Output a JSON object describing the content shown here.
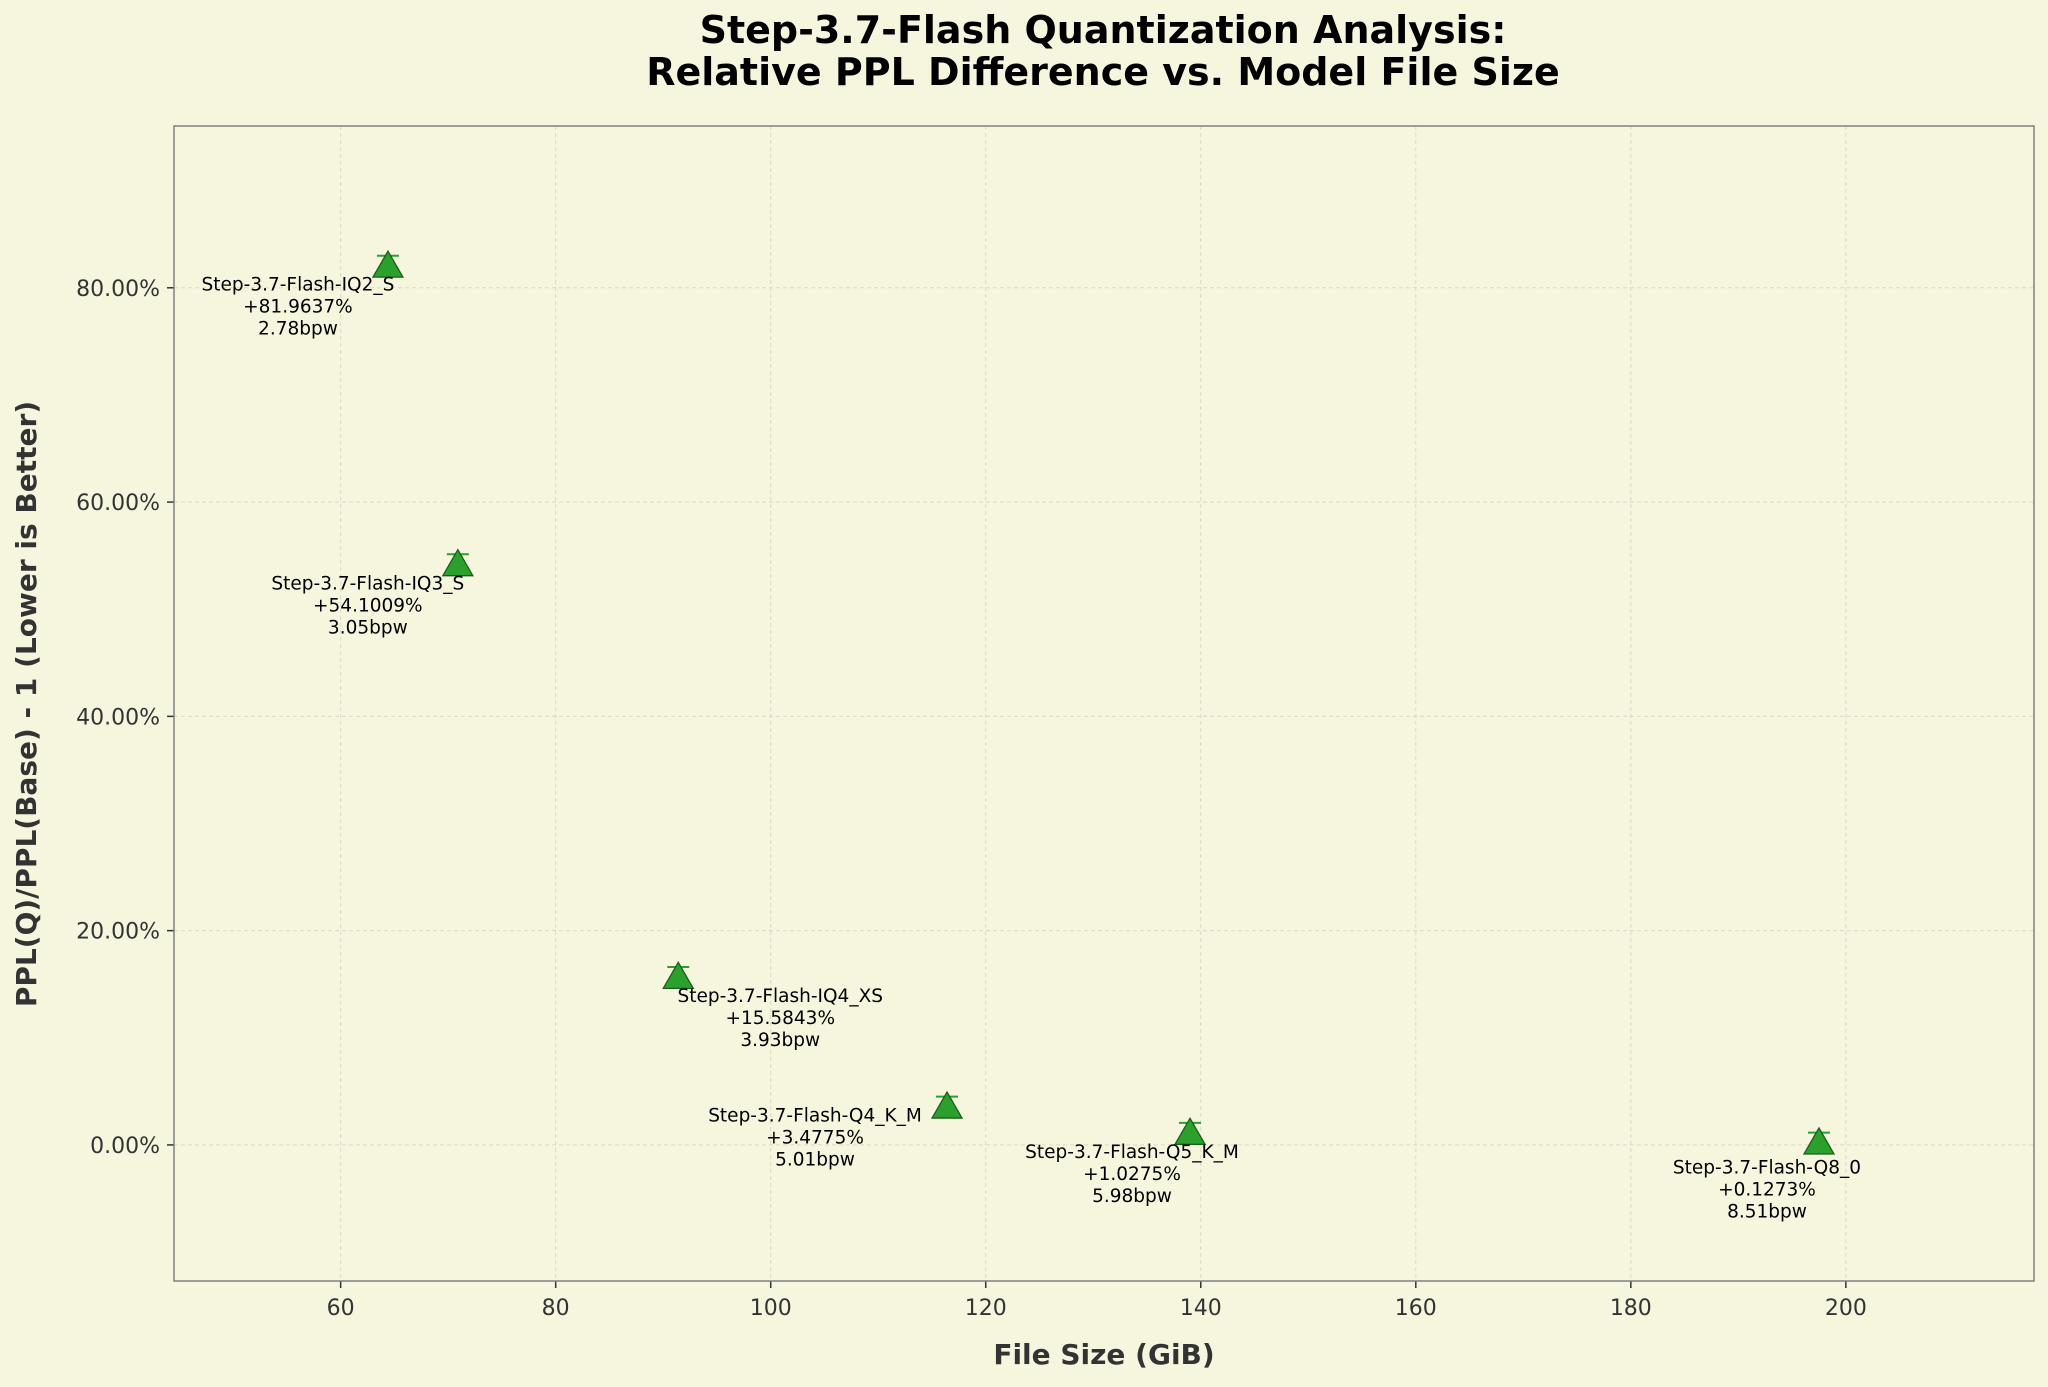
{
  "chart_data": {
    "type": "scatter",
    "title": [
      "Step-3.7-Flash Quantization Analysis:",
      "Relative PPL Difference vs. Model File Size"
    ],
    "xlabel": "File Size (GiB)",
    "ylabel": "PPL(Q)/PPL(Base) - 1 (Lower is Better)",
    "xlim": [
      44.5,
      217.5
    ],
    "ylim": [
      -12.7,
      95.1
    ],
    "xticks": [
      60,
      80,
      100,
      120,
      140,
      160,
      180,
      200
    ],
    "xtick_labels": [
      "60",
      "80",
      "100",
      "120",
      "140",
      "160",
      "180",
      "200"
    ],
    "yticks": [
      0,
      20,
      40,
      60,
      80
    ],
    "ytick_labels": [
      "0.00%",
      "20.00%",
      "40.00%",
      "60.00%",
      "80.00%"
    ],
    "grid": true,
    "marker": "triangle",
    "colors": {
      "background": "#f6f6de",
      "marker_fill": "#2ca02c",
      "marker_edge": "#1a5e1a",
      "grid": "#d9d9c6",
      "spine": "#808080"
    },
    "points": [
      {
        "x": 64.4,
        "y": 81.9637,
        "name": "Step-3.7-Flash-IQ2_S",
        "value_label": "+81.9637%",
        "bpw_label": "2.78bpw"
      },
      {
        "x": 70.9,
        "y": 54.1009,
        "name": "Step-3.7-Flash-IQ3_S",
        "value_label": "+54.1009%",
        "bpw_label": "3.05bpw"
      },
      {
        "x": 91.4,
        "y": 15.5843,
        "name": "Step-3.7-Flash-IQ4_XS",
        "value_label": "+15.5843%",
        "bpw_label": "3.93bpw"
      },
      {
        "x": 116.4,
        "y": 3.4775,
        "name": "Step-3.7-Flash-Q4_K_M",
        "value_label": "+3.4775%",
        "bpw_label": "5.01bpw"
      },
      {
        "x": 139.0,
        "y": 1.0275,
        "name": "Step-3.7-Flash-Q5_K_M",
        "value_label": "+1.0275%",
        "bpw_label": "5.98bpw"
      },
      {
        "x": 197.5,
        "y": 0.1273,
        "name": "Step-3.7-Flash-Q8_0",
        "value_label": "+0.1273%",
        "bpw_label": "8.51bpw"
      }
    ]
  }
}
